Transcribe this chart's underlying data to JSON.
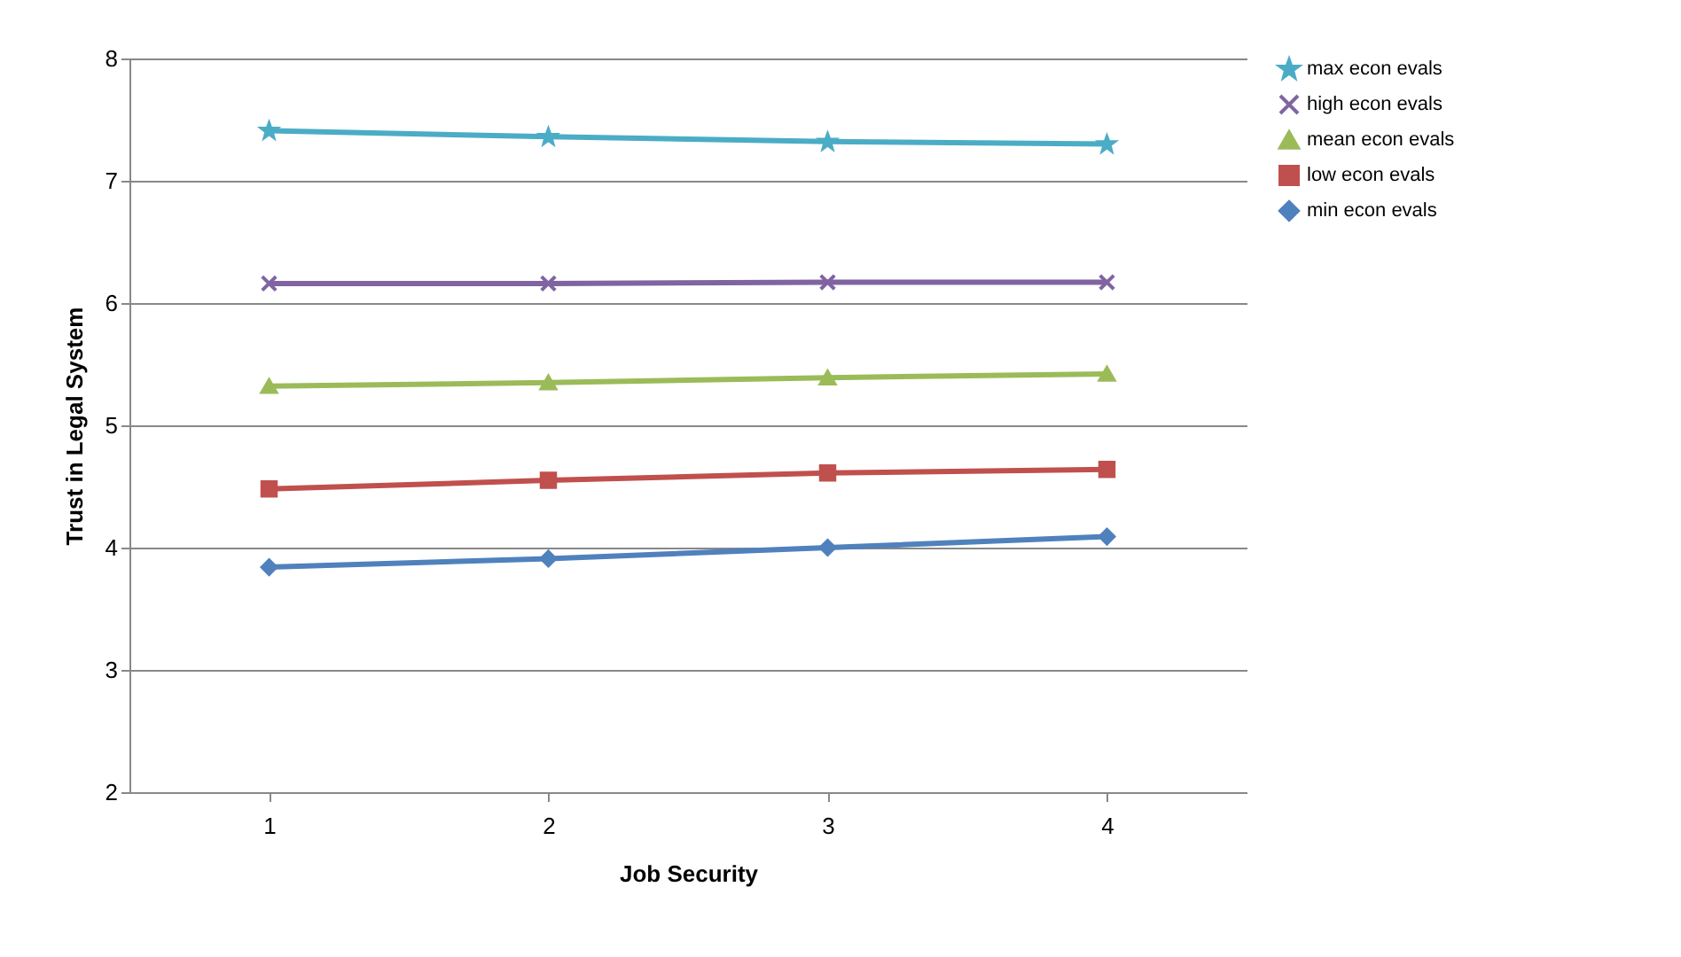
{
  "chart_data": {
    "type": "line",
    "xlabel": "Job Security",
    "ylabel": "Trust in Legal System",
    "categories": [
      "1",
      "2",
      "3",
      "4"
    ],
    "ylim": [
      2,
      8
    ],
    "yticks": [
      2,
      3,
      4,
      5,
      6,
      7,
      8
    ],
    "grid": "y",
    "legend": "right",
    "series": [
      {
        "name": "max econ evals",
        "color": "#4bacc6",
        "marker": "star",
        "values": [
          7.41,
          7.36,
          7.32,
          7.3
        ]
      },
      {
        "name": "high econ evals",
        "color": "#8064a2",
        "marker": "cross",
        "values": [
          6.16,
          6.16,
          6.17,
          6.17
        ]
      },
      {
        "name": "mean econ evals",
        "color": "#9bbb59",
        "marker": "triangle",
        "values": [
          5.32,
          5.35,
          5.39,
          5.42
        ]
      },
      {
        "name": "low econ evals",
        "color": "#c0504d",
        "marker": "square",
        "values": [
          4.48,
          4.55,
          4.61,
          4.64
        ]
      },
      {
        "name": "min econ evals",
        "color": "#4f81bd",
        "marker": "diamond",
        "values": [
          3.84,
          3.91,
          4.0,
          4.09
        ]
      }
    ]
  }
}
